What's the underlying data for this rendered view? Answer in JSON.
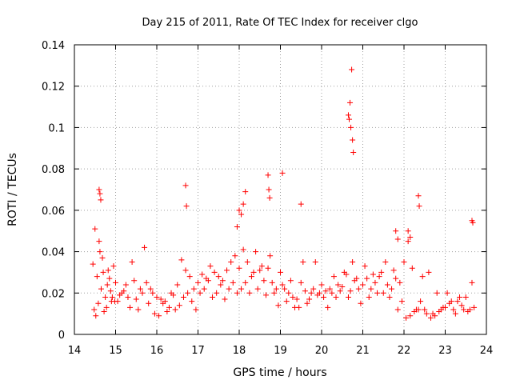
{
  "chart_data": {
    "type": "scatter",
    "title": "Day 215 of 2011, Rate Of TEC Index for receiver clgo",
    "xlabel": "GPS time / hours",
    "ylabel": "ROTI / TECUs",
    "xlim": [
      14,
      24
    ],
    "ylim": [
      0,
      0.14
    ],
    "xticks": [
      14,
      15,
      16,
      17,
      18,
      19,
      20,
      21,
      22,
      23,
      24
    ],
    "yticks": [
      0,
      0.02,
      0.04,
      0.06,
      0.08,
      0.1,
      0.12,
      0.14
    ],
    "xtick_labels": [
      "14",
      "15",
      "16",
      "17",
      "18",
      "19",
      "20",
      "21",
      "22",
      "23",
      "24"
    ],
    "ytick_labels": [
      "0",
      "0.02",
      "0.04",
      "0.06",
      "0.08",
      "0.1",
      "0.12",
      "0.14"
    ],
    "grid": true,
    "marker": "+",
    "series": [
      {
        "name": "ROTI",
        "color": "#ff0000",
        "x": [
          14.45,
          14.5,
          14.55,
          14.6,
          14.65,
          14.7,
          14.75,
          14.8,
          14.85,
          14.9,
          14.95,
          15.0,
          15.1,
          15.2,
          15.3,
          15.4,
          15.5,
          15.6,
          15.7,
          15.8,
          15.9,
          16.0,
          16.1,
          16.2,
          16.3,
          16.4,
          16.5,
          16.6,
          16.7,
          16.8,
          16.9,
          17.0,
          17.1,
          17.2,
          17.3,
          17.4,
          17.5,
          17.6,
          17.7,
          17.8,
          17.9,
          18.0,
          18.1,
          18.2,
          18.3,
          18.4,
          18.5,
          18.6,
          18.7,
          18.8,
          18.9,
          19.0,
          19.1,
          19.2,
          19.3,
          19.4,
          19.5,
          19.6,
          19.7,
          19.8,
          19.9,
          20.0,
          20.1,
          20.2,
          20.3,
          20.4,
          20.5,
          20.6,
          20.7,
          20.8,
          20.9,
          21.0,
          21.1,
          21.2,
          21.3,
          21.4,
          21.5,
          21.6,
          21.7,
          21.8,
          21.9,
          22.0,
          22.1,
          22.2,
          22.3,
          22.4,
          22.5,
          22.6,
          22.7,
          22.8,
          22.9,
          23.0,
          23.1,
          23.2,
          23.3,
          23.4,
          23.5,
          23.6,
          23.7,
          14.48,
          14.52,
          14.58,
          14.62,
          14.68,
          14.72,
          14.78,
          14.82,
          14.88,
          14.92,
          14.98,
          15.05,
          15.15,
          15.25,
          15.35,
          15.45,
          15.55,
          15.65,
          15.75,
          15.85,
          15.95,
          16.05,
          16.15,
          16.25,
          16.35,
          16.45,
          16.55,
          16.65,
          16.75,
          16.85,
          16.95,
          17.05,
          17.15,
          17.25,
          17.35,
          17.45,
          17.55,
          17.65,
          17.75,
          17.85,
          17.95,
          18.05,
          18.15,
          18.25,
          18.35,
          18.45,
          18.55,
          18.65,
          18.75,
          18.85,
          18.95,
          19.05,
          19.15,
          19.25,
          19.35,
          19.45,
          19.55,
          19.65,
          19.75,
          19.85,
          19.95,
          20.05,
          20.15,
          20.25,
          20.35,
          20.45,
          20.55,
          20.65,
          20.75,
          20.85,
          20.95,
          21.05,
          21.15,
          21.25,
          21.35,
          21.45,
          21.55,
          21.65,
          21.75,
          21.85,
          21.95,
          22.05,
          22.15,
          22.25,
          22.35,
          22.45,
          22.55,
          22.65,
          22.75,
          22.85,
          22.95,
          23.05,
          23.15,
          23.25,
          23.35,
          23.45,
          23.55,
          23.65,
          14.6,
          14.62,
          14.64,
          16.7,
          16.72,
          18.15,
          18.7,
          18.72,
          18.74,
          19.05,
          19.5,
          20.65,
          20.67,
          20.69,
          20.71,
          20.73,
          20.75,
          20.77,
          22.35,
          22.37,
          23.65,
          23.67,
          17.95,
          18.0,
          18.05,
          18.1,
          21.8,
          21.85,
          22.1,
          22.15
        ],
        "y": [
          0.034,
          0.051,
          0.028,
          0.045,
          0.022,
          0.03,
          0.018,
          0.024,
          0.027,
          0.016,
          0.033,
          0.025,
          0.019,
          0.021,
          0.018,
          0.035,
          0.017,
          0.022,
          0.042,
          0.015,
          0.02,
          0.018,
          0.017,
          0.016,
          0.013,
          0.019,
          0.024,
          0.036,
          0.031,
          0.028,
          0.022,
          0.025,
          0.029,
          0.027,
          0.033,
          0.03,
          0.028,
          0.026,
          0.031,
          0.035,
          0.038,
          0.032,
          0.041,
          0.035,
          0.028,
          0.04,
          0.031,
          0.026,
          0.032,
          0.025,
          0.022,
          0.03,
          0.022,
          0.02,
          0.018,
          0.017,
          0.025,
          0.021,
          0.017,
          0.022,
          0.019,
          0.024,
          0.021,
          0.022,
          0.028,
          0.024,
          0.023,
          0.029,
          0.021,
          0.026,
          0.022,
          0.024,
          0.027,
          0.022,
          0.025,
          0.028,
          0.02,
          0.024,
          0.022,
          0.027,
          0.025,
          0.035,
          0.045,
          0.032,
          0.012,
          0.016,
          0.012,
          0.03,
          0.01,
          0.02,
          0.012,
          0.013,
          0.015,
          0.012,
          0.016,
          0.014,
          0.018,
          0.012,
          0.013,
          0.012,
          0.009,
          0.015,
          0.04,
          0.037,
          0.011,
          0.013,
          0.031,
          0.021,
          0.018,
          0.016,
          0.016,
          0.02,
          0.024,
          0.013,
          0.026,
          0.012,
          0.02,
          0.025,
          0.022,
          0.01,
          0.009,
          0.015,
          0.011,
          0.02,
          0.012,
          0.014,
          0.018,
          0.02,
          0.016,
          0.012,
          0.02,
          0.022,
          0.026,
          0.018,
          0.02,
          0.024,
          0.017,
          0.022,
          0.025,
          0.02,
          0.022,
          0.025,
          0.02,
          0.03,
          0.022,
          0.033,
          0.019,
          0.038,
          0.02,
          0.014,
          0.024,
          0.016,
          0.026,
          0.013,
          0.013,
          0.035,
          0.015,
          0.02,
          0.035,
          0.02,
          0.018,
          0.013,
          0.02,
          0.018,
          0.021,
          0.03,
          0.018,
          0.035,
          0.027,
          0.015,
          0.033,
          0.018,
          0.029,
          0.02,
          0.03,
          0.035,
          0.018,
          0.031,
          0.012,
          0.016,
          0.008,
          0.009,
          0.011,
          0.012,
          0.028,
          0.01,
          0.008,
          0.009,
          0.011,
          0.013,
          0.02,
          0.016,
          0.01,
          0.018,
          0.012,
          0.011,
          0.025,
          0.07,
          0.068,
          0.065,
          0.072,
          0.062,
          0.069,
          0.077,
          0.07,
          0.066,
          0.078,
          0.063,
          0.106,
          0.104,
          0.112,
          0.1,
          0.128,
          0.094,
          0.088,
          0.067,
          0.062,
          0.055,
          0.054,
          0.052,
          0.06,
          0.058,
          0.063,
          0.05,
          0.046,
          0.05,
          0.047
        ]
      }
    ]
  }
}
